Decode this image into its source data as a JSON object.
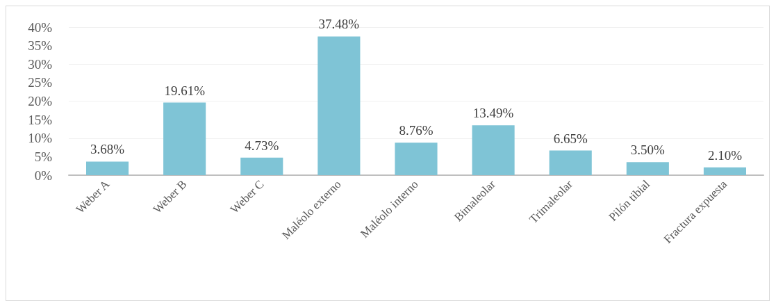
{
  "chart_data": {
    "type": "bar",
    "categories": [
      "Weber A",
      "Weber B",
      "Weber C",
      "Maléolo externo",
      "Maléolo interno",
      "Bimaleolar",
      "Trimaleolar",
      "Pilón tibial",
      "Fractura expuesta"
    ],
    "values": [
      3.68,
      19.61,
      4.73,
      37.48,
      8.76,
      13.49,
      6.65,
      3.5,
      2.1
    ],
    "value_labels": [
      "3.68%",
      "19.61%",
      "4.73%",
      "37.48%",
      "8.76%",
      "13.49%",
      "6.65%",
      "3.50%",
      "2.10%"
    ],
    "color": "#7fc4d6",
    "ylim": [
      0,
      40
    ],
    "yticks": [
      {
        "value": 0,
        "label": "0%"
      },
      {
        "value": 5,
        "label": "5%"
      },
      {
        "value": 10,
        "label": "10%"
      },
      {
        "value": 15,
        "label": "15%"
      },
      {
        "value": 20,
        "label": "20%"
      },
      {
        "value": 25,
        "label": "25%"
      },
      {
        "value": 30,
        "label": "30%"
      },
      {
        "value": 35,
        "label": "35%"
      },
      {
        "value": 40,
        "label": "40%"
      }
    ],
    "grid": "y"
  }
}
